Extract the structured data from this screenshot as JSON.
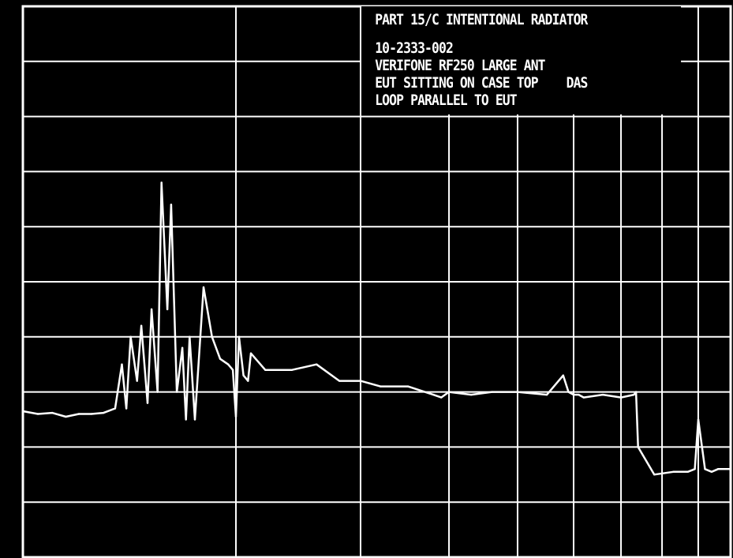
{
  "chart_data": {
    "type": "line",
    "title_lines": [
      "PART 15/C INTENTIONAL RADIATOR",
      "10-2333-002",
      "VERIFONE RF250 LARGE ANT",
      "EUT SITTING ON CASE TOP    DAS",
      "LOOP PARALLEL TO EUT"
    ],
    "xlabel": "",
    "ylabel": "",
    "x_scale": "log",
    "xlim": [
      1,
      10
    ],
    "ylim": [
      0,
      10
    ],
    "grid": true,
    "series": [
      {
        "x": [
          1.0,
          1.05,
          1.1,
          1.15,
          1.2,
          1.25,
          1.3,
          1.35,
          1.38,
          1.4,
          1.42,
          1.45,
          1.47,
          1.5,
          1.52,
          1.55,
          1.57,
          1.6,
          1.62,
          1.65,
          1.68,
          1.7,
          1.72,
          1.75,
          1.8,
          1.85,
          1.9,
          1.95,
          1.98,
          2.0,
          2.02,
          2.05,
          2.08,
          2.1,
          2.2,
          2.4,
          2.6,
          2.8,
          3.0,
          3.2,
          3.5,
          3.8,
          3.9,
          4.0,
          4.3,
          4.6,
          5.0,
          5.5,
          5.8,
          5.9,
          6.0,
          6.1,
          6.2,
          6.6,
          7.0,
          7.3,
          7.35,
          7.4,
          7.8,
          8.3,
          8.7,
          8.9,
          9.0,
          9.2,
          9.4,
          9.6,
          9.8,
          10.0
        ],
        "y": [
          2.65,
          2.6,
          2.62,
          2.55,
          2.6,
          2.6,
          2.62,
          2.7,
          3.5,
          2.7,
          4.0,
          3.2,
          4.2,
          2.8,
          4.5,
          3.0,
          6.8,
          4.5,
          6.4,
          3.0,
          3.8,
          2.5,
          4.0,
          2.5,
          4.9,
          4.0,
          3.6,
          3.5,
          3.4,
          2.55,
          4.0,
          3.3,
          3.2,
          3.7,
          3.4,
          3.4,
          3.5,
          3.2,
          3.2,
          3.1,
          3.1,
          2.95,
          2.9,
          3.0,
          2.95,
          3.0,
          3.0,
          2.95,
          3.3,
          3.0,
          2.95,
          2.95,
          2.9,
          2.95,
          2.9,
          2.95,
          3.0,
          2.0,
          1.5,
          1.55,
          1.55,
          1.6,
          2.5,
          1.6,
          1.55,
          1.6,
          1.6,
          1.6
        ]
      }
    ]
  }
}
